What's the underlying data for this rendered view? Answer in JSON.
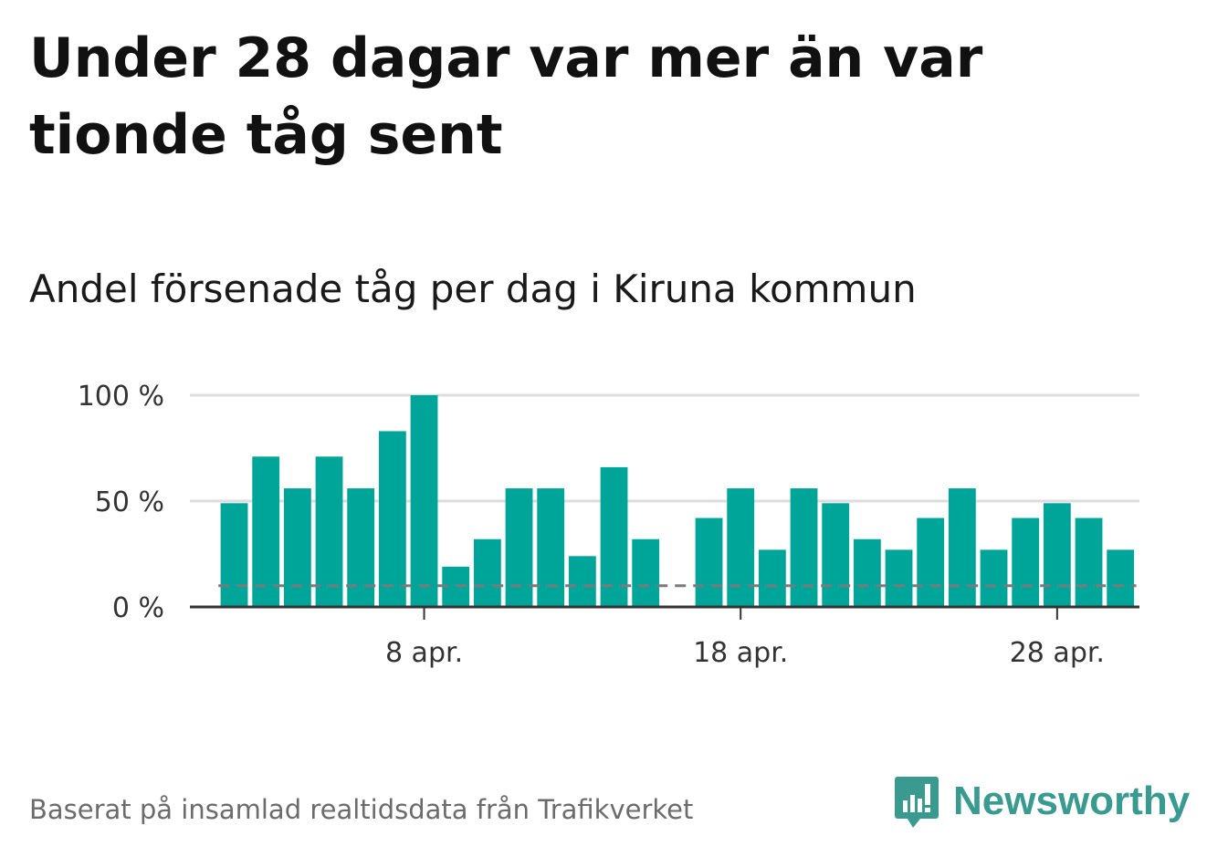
{
  "title": "Under 28 dagar var mer än var tionde tåg sent",
  "subtitle": "Andel försenade tåg per dag i Kiruna kommun",
  "source": "Baserat på insamlad realtidsdata från Trafikverket",
  "brand": "Newsworthy",
  "colors": {
    "bar": "#00a59a",
    "reference": "#7a7a7a",
    "grid": "#dddddd",
    "axis": "#333333",
    "brand": "#3a9a8f"
  },
  "chart_data": {
    "type": "bar",
    "title": "Andel försenade tåg per dag i Kiruna kommun",
    "xlabel": "",
    "ylabel": "",
    "ylim": [
      0,
      100
    ],
    "yticks": [
      0,
      50,
      100
    ],
    "ytick_labels": [
      "0 %",
      "50 %",
      "100 %"
    ],
    "xtick_labels": [
      {
        "day": 8,
        "label": "8 apr."
      },
      {
        "day": 18,
        "label": "18 apr."
      },
      {
        "day": 28,
        "label": "28 apr."
      }
    ],
    "x_range_days": [
      0.6,
      30.6
    ],
    "days": [
      2,
      3,
      4,
      5,
      6,
      7,
      8,
      9,
      10,
      11,
      12,
      13,
      14,
      15,
      16,
      17,
      18,
      19,
      20,
      21,
      22,
      23,
      24,
      25,
      26,
      27,
      28,
      29,
      30
    ],
    "values": [
      49,
      71,
      56,
      71,
      56,
      83,
      100,
      19,
      32,
      56,
      56,
      24,
      66,
      32,
      null,
      42,
      56,
      27,
      56,
      49,
      32,
      27,
      42,
      56,
      27,
      42,
      49,
      42,
      27
    ],
    "reference_value": 10,
    "grid": true,
    "legend": "none"
  }
}
